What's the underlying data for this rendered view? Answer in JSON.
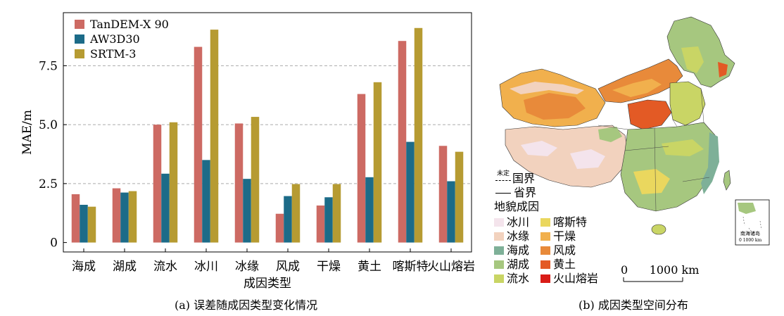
{
  "chart_data": {
    "type": "bar",
    "categories": [
      "海成",
      "湖成",
      "流水",
      "冰川",
      "冰缘",
      "风成",
      "干燥",
      "黄土",
      "喀斯特",
      "火山熔岩"
    ],
    "series": [
      {
        "name": "TanDEM-X 90",
        "color": "#cd6a63",
        "values": [
          2.05,
          2.3,
          5.0,
          8.3,
          5.05,
          1.22,
          1.57,
          6.3,
          8.55,
          4.1
        ]
      },
      {
        "name": "AW3D30",
        "color": "#1c6b88",
        "values": [
          1.6,
          2.12,
          2.92,
          3.5,
          2.7,
          1.97,
          1.92,
          2.77,
          4.27,
          2.6
        ]
      },
      {
        "name": "SRTM-3",
        "color": "#b69b32",
        "values": [
          1.52,
          2.18,
          5.1,
          9.03,
          5.33,
          2.48,
          2.48,
          6.8,
          9.1,
          3.85
        ]
      }
    ],
    "yticks": [
      0,
      2.5,
      5.0,
      7.5
    ],
    "ytick_labels": [
      "0",
      "2.5",
      "5.0",
      "7.5"
    ],
    "ylim": [
      -0.4,
      9.75
    ],
    "xlabel": "成因类型",
    "ylabel": "MAE/m",
    "grid": "y-dashed",
    "legend": "top-left"
  },
  "captions": {
    "left": "(a) 误差随成因类型变化情况",
    "right": "(b) 成因类型空间分布"
  },
  "map": {
    "boundary_legend": {
      "undetermined_label": "未定",
      "national": "国界",
      "provincial": "省界"
    },
    "legend_title": "地貌成因",
    "classes": [
      {
        "label": "冰川",
        "color": "#f4e4ec"
      },
      {
        "label": "冰缘",
        "color": "#f2d2be"
      },
      {
        "label": "海成",
        "color": "#7eb098"
      },
      {
        "label": "湖成",
        "color": "#a6c77f"
      },
      {
        "label": "流水",
        "color": "#c9d565"
      },
      {
        "label": "喀斯特",
        "color": "#ead75e"
      },
      {
        "label": "干燥",
        "color": "#f1b04d"
      },
      {
        "label": "风成",
        "color": "#e88a3a"
      },
      {
        "label": "黄土",
        "color": "#e35a25"
      },
      {
        "label": "火山熔岩",
        "color": "#d91c17"
      }
    ],
    "scale_label": "0      1000 km",
    "inset_label": "南海诸岛",
    "inset_scale": "0 1000 km"
  }
}
